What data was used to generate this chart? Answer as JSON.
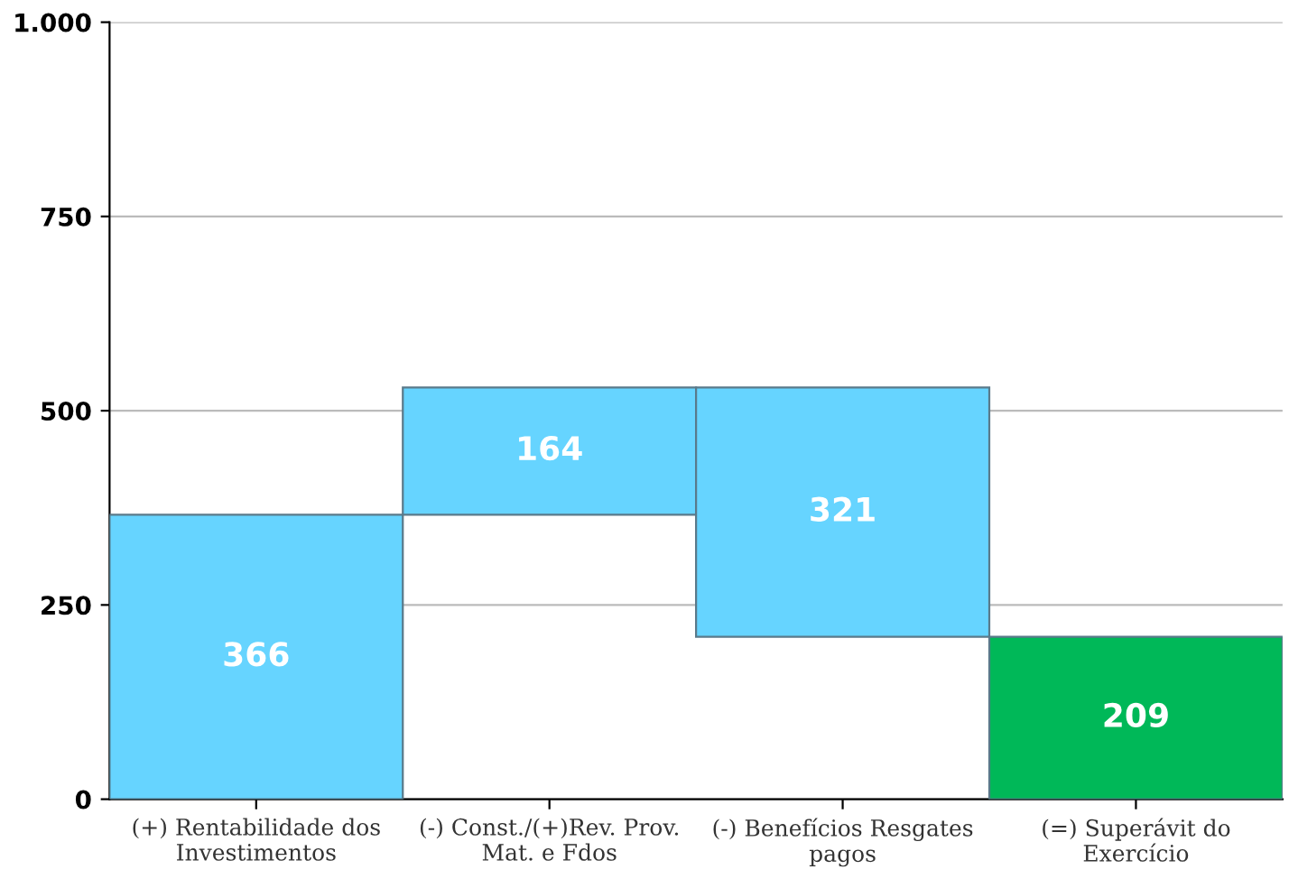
{
  "chart_data": {
    "type": "bar",
    "categories": [
      "(+) Rentabilidade dos\nInvestimentos",
      "(-) Const./(+)Rev. Prov.\nMat. e Fdos",
      "(-) Benefícios Resgates\npagos",
      "(=) Superávit do\nExercício"
    ],
    "values": [
      366,
      164,
      321,
      209
    ],
    "base": [
      0,
      366,
      209,
      0
    ],
    "colors": [
      "#66d4ff",
      "#66d4ff",
      "#66d4ff",
      "#00b858"
    ],
    "data_labels": true,
    "ylim": [
      0,
      1000
    ],
    "yticks": [
      0,
      250,
      500,
      750,
      {
        "value": 1000,
        "label": "1.000"
      }
    ],
    "grid": "y"
  }
}
